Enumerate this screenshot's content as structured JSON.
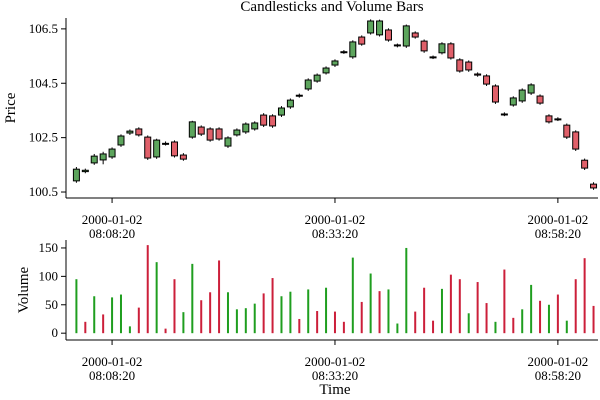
{
  "chart_data": [
    {
      "type": "candlestick",
      "title": "Candlesticks and Volume Bars",
      "y_label": "Price",
      "x": [
        "2000-01-02 08:04:20",
        "2000-01-02 08:05:20",
        "2000-01-02 08:06:20",
        "2000-01-02 08:07:20",
        "2000-01-02 08:08:20",
        "2000-01-02 08:09:20",
        "2000-01-02 08:10:20",
        "2000-01-02 08:11:20",
        "2000-01-02 08:12:20",
        "2000-01-02 08:13:20",
        "2000-01-02 08:14:20",
        "2000-01-02 08:15:20",
        "2000-01-02 08:16:20",
        "2000-01-02 08:17:20",
        "2000-01-02 08:18:20",
        "2000-01-02 08:19:20",
        "2000-01-02 08:20:20",
        "2000-01-02 08:21:20",
        "2000-01-02 08:22:20",
        "2000-01-02 08:23:20",
        "2000-01-02 08:24:20",
        "2000-01-02 08:25:20",
        "2000-01-02 08:26:20",
        "2000-01-02 08:27:20",
        "2000-01-02 08:28:20",
        "2000-01-02 08:29:20",
        "2000-01-02 08:30:20",
        "2000-01-02 08:31:20",
        "2000-01-02 08:32:20",
        "2000-01-02 08:33:20",
        "2000-01-02 08:34:20",
        "2000-01-02 08:35:20",
        "2000-01-02 08:36:20",
        "2000-01-02 08:37:20",
        "2000-01-02 08:38:20",
        "2000-01-02 08:39:20",
        "2000-01-02 08:40:20",
        "2000-01-02 08:41:20",
        "2000-01-02 08:42:20",
        "2000-01-02 08:43:20",
        "2000-01-02 08:44:20",
        "2000-01-02 08:45:20",
        "2000-01-02 08:46:20",
        "2000-01-02 08:47:20",
        "2000-01-02 08:48:20",
        "2000-01-02 08:49:20",
        "2000-01-02 08:50:20",
        "2000-01-02 08:51:20",
        "2000-01-02 08:52:20",
        "2000-01-02 08:53:20",
        "2000-01-02 08:54:20",
        "2000-01-02 08:55:20",
        "2000-01-02 08:56:20",
        "2000-01-02 08:57:20",
        "2000-01-02 08:58:20",
        "2000-01-02 08:59:20",
        "2000-01-02 09:00:20",
        "2000-01-02 09:01:20",
        "2000-01-02 09:02:20"
      ],
      "open": [
        100.91,
        101.25,
        101.57,
        101.68,
        101.79,
        102.23,
        102.67,
        102.82,
        102.52,
        101.79,
        102.27,
        102.34,
        101.86,
        102.52,
        102.89,
        102.82,
        102.82,
        102.19,
        102.6,
        102.71,
        102.82,
        103.33,
        103.3,
        103.33,
        103.63,
        104.03,
        104.29,
        104.58,
        104.88,
        105.17,
        105.64,
        105.47,
        106.2,
        106.35,
        106.28,
        106.46,
        105.91,
        105.87,
        106.35,
        106.05,
        105.47,
        105.62,
        105.95,
        105.36,
        105.28,
        104.84,
        104.77,
        104.4,
        103.37,
        103.7,
        103.85,
        104.14,
        104.03,
        103.3,
        103.19,
        102.96,
        102.71,
        101.67,
        100.79
      ],
      "high": [
        101.42,
        101.36,
        101.9,
        101.98,
        102.14,
        102.62,
        102.8,
        102.88,
        102.58,
        102.46,
        102.36,
        102.4,
        101.93,
        103.12,
        102.95,
        102.88,
        102.88,
        102.55,
        102.84,
        103.06,
        103.1,
        103.4,
        103.36,
        103.66,
        103.94,
        104.12,
        104.68,
        104.86,
        105.12,
        105.38,
        105.72,
        106.08,
        106.26,
        106.85,
        106.84,
        106.52,
        105.96,
        106.66,
        106.41,
        106.11,
        105.52,
        106.01,
        106.01,
        105.42,
        105.34,
        104.9,
        104.83,
        104.46,
        103.43,
        104.02,
        104.31,
        104.5,
        104.09,
        103.36,
        103.25,
        103.02,
        102.77,
        101.73,
        100.86
      ],
      "low": [
        100.84,
        101.19,
        101.5,
        101.52,
        101.72,
        102.16,
        102.6,
        102.54,
        101.68,
        101.72,
        102.21,
        101.77,
        101.65,
        102.46,
        102.56,
        102.35,
        102.39,
        102.12,
        102.54,
        102.64,
        102.76,
        102.89,
        102.86,
        103.26,
        103.56,
        103.97,
        104.22,
        104.52,
        104.82,
        105.1,
        105.58,
        105.4,
        105.88,
        106.29,
        106.22,
        106.03,
        105.82,
        105.8,
        106.14,
        105.62,
        105.39,
        105.56,
        105.37,
        104.89,
        104.92,
        104.74,
        104.4,
        103.74,
        103.29,
        103.64,
        103.78,
        104.07,
        103.71,
        103.02,
        103.11,
        102.45,
        102.01,
        101.31,
        100.58
      ],
      "close": [
        101.34,
        101.3,
        101.82,
        101.9,
        102.08,
        102.56,
        102.74,
        102.6,
        101.75,
        102.41,
        102.29,
        101.83,
        101.71,
        103.08,
        102.63,
        102.41,
        102.45,
        102.49,
        102.78,
        103.0,
        103.04,
        102.96,
        102.93,
        103.59,
        103.88,
        104.06,
        104.62,
        104.8,
        105.06,
        105.32,
        105.66,
        106.02,
        105.94,
        106.79,
        106.79,
        106.09,
        105.88,
        106.61,
        106.2,
        105.69,
        105.45,
        105.95,
        105.43,
        104.95,
        104.99,
        104.8,
        104.47,
        103.81,
        103.35,
        103.96,
        104.25,
        104.44,
        103.77,
        103.08,
        103.17,
        102.52,
        102.08,
        101.38,
        100.65
      ],
      "up_color": "#5da55d",
      "down_color": "#e0606a",
      "xlim": [
        "2000-01-02 08:03:10",
        "2000-01-02 09:02:50"
      ],
      "xticks": [
        "2000-01-02 08:08:20",
        "2000-01-02 08:33:20",
        "2000-01-02 08:58:20"
      ],
      "ylim": [
        100.28,
        106.9
      ],
      "yticks": [
        100.5,
        102.5,
        104.5,
        106.5
      ]
    },
    {
      "type": "bar",
      "x_label": "Time",
      "y_label": "Volume",
      "x": [
        "2000-01-02 08:04:20",
        "2000-01-02 08:05:20",
        "2000-01-02 08:06:20",
        "2000-01-02 08:07:20",
        "2000-01-02 08:08:20",
        "2000-01-02 08:09:20",
        "2000-01-02 08:10:20",
        "2000-01-02 08:11:20",
        "2000-01-02 08:12:20",
        "2000-01-02 08:13:20",
        "2000-01-02 08:14:20",
        "2000-01-02 08:15:20",
        "2000-01-02 08:16:20",
        "2000-01-02 08:17:20",
        "2000-01-02 08:18:20",
        "2000-01-02 08:19:20",
        "2000-01-02 08:20:20",
        "2000-01-02 08:21:20",
        "2000-01-02 08:22:20",
        "2000-01-02 08:23:20",
        "2000-01-02 08:24:20",
        "2000-01-02 08:25:20",
        "2000-01-02 08:26:20",
        "2000-01-02 08:27:20",
        "2000-01-02 08:28:20",
        "2000-01-02 08:29:20",
        "2000-01-02 08:30:20",
        "2000-01-02 08:31:20",
        "2000-01-02 08:32:20",
        "2000-01-02 08:33:20",
        "2000-01-02 08:34:20",
        "2000-01-02 08:35:20",
        "2000-01-02 08:36:20",
        "2000-01-02 08:37:20",
        "2000-01-02 08:38:20",
        "2000-01-02 08:39:20",
        "2000-01-02 08:40:20",
        "2000-01-02 08:41:20",
        "2000-01-02 08:42:20",
        "2000-01-02 08:43:20",
        "2000-01-02 08:44:20",
        "2000-01-02 08:45:20",
        "2000-01-02 08:46:20",
        "2000-01-02 08:47:20",
        "2000-01-02 08:48:20",
        "2000-01-02 08:49:20",
        "2000-01-02 08:50:20",
        "2000-01-02 08:51:20",
        "2000-01-02 08:52:20",
        "2000-01-02 08:53:20",
        "2000-01-02 08:54:20",
        "2000-01-02 08:55:20",
        "2000-01-02 08:56:20",
        "2000-01-02 08:57:20",
        "2000-01-02 08:58:20",
        "2000-01-02 08:59:20",
        "2000-01-02 09:00:20",
        "2000-01-02 09:01:20",
        "2000-01-02 09:02:20"
      ],
      "values": [
        95,
        20,
        65,
        33,
        63,
        68,
        12,
        45,
        155,
        125,
        8,
        95,
        37,
        122,
        58,
        72,
        128,
        72,
        42,
        44,
        52,
        70,
        97,
        65,
        73,
        25,
        77,
        39,
        80,
        38,
        20,
        133,
        55,
        105,
        74,
        77,
        17,
        150,
        38,
        80,
        22,
        78,
        103,
        95,
        35,
        90,
        53,
        20,
        112,
        27,
        42,
        85,
        57,
        50,
        68,
        22,
        95,
        132,
        48
      ],
      "colors": [
        "#1f9e1f",
        "#cc1f3a",
        "#1f9e1f",
        "#cc1f3a",
        "#1f9e1f",
        "#1f9e1f",
        "#1f9e1f",
        "#cc1f3a",
        "#cc1f3a",
        "#1f9e1f",
        "#cc1f3a",
        "#cc1f3a",
        "#1f9e1f",
        "#1f9e1f",
        "#cc1f3a",
        "#cc1f3a",
        "#cc1f3a",
        "#1f9e1f",
        "#1f9e1f",
        "#1f9e1f",
        "#1f9e1f",
        "#cc1f3a",
        "#cc1f3a",
        "#1f9e1f",
        "#1f9e1f",
        "#cc1f3a",
        "#1f9e1f",
        "#cc1f3a",
        "#1f9e1f",
        "#cc1f3a",
        "#cc1f3a",
        "#1f9e1f",
        "#cc1f3a",
        "#1f9e1f",
        "#cc1f3a",
        "#1f9e1f",
        "#1f9e1f",
        "#1f9e1f",
        "#cc1f3a",
        "#cc1f3a",
        "#cc1f3a",
        "#1f9e1f",
        "#cc1f3a",
        "#cc1f3a",
        "#1f9e1f",
        "#cc1f3a",
        "#cc1f3a",
        "#1f9e1f",
        "#cc1f3a",
        "#cc1f3a",
        "#1f9e1f",
        "#1f9e1f",
        "#cc1f3a",
        "#1f9e1f",
        "#cc1f3a",
        "#1f9e1f",
        "#cc1f3a",
        "#cc1f3a",
        "#cc1f3a"
      ],
      "xlim": [
        "2000-01-02 08:03:10",
        "2000-01-02 09:02:50"
      ],
      "xticks": [
        "2000-01-02 08:08:20",
        "2000-01-02 08:33:20",
        "2000-01-02 08:58:20"
      ],
      "ylim": [
        -12,
        164
      ],
      "yticks": [
        0,
        50,
        100,
        150
      ]
    }
  ]
}
